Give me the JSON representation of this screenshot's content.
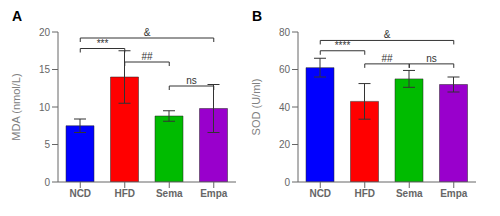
{
  "chart_data": [
    {
      "type": "bar",
      "title": "A",
      "categories": [
        "NCD",
        "HFD",
        "Sema",
        "Empa"
      ],
      "values": [
        7.5,
        14.0,
        8.8,
        9.8
      ],
      "errors": [
        0.9,
        3.5,
        0.7,
        3.2
      ],
      "colors": [
        "#0000FF",
        "#FF0000",
        "#00BB00",
        "#9900CC"
      ],
      "ylabel": "MDA (nmol/L)",
      "ylim": [
        0,
        20
      ],
      "yticks": [
        0,
        5,
        10,
        15,
        20
      ],
      "grid": false,
      "annotations": [
        {
          "text": "***",
          "x1": "NCD",
          "x2": "HFD",
          "y": 17.8
        },
        {
          "text": "##",
          "x1": "HFD",
          "x2": "Sema",
          "y": 16.0
        },
        {
          "text": "&",
          "x1": "NCD",
          "x2": "Empa",
          "y": 19.2
        },
        {
          "text": "ns",
          "x1": "Sema",
          "x2": "Empa",
          "y": 12.8
        }
      ]
    },
    {
      "type": "bar",
      "title": "B",
      "categories": [
        "NCD",
        "HFD",
        "Sema",
        "Empa"
      ],
      "values": [
        61.0,
        43.0,
        55.0,
        52.0
      ],
      "errors": [
        5.0,
        9.5,
        4.5,
        4.0
      ],
      "colors": [
        "#0000FF",
        "#FF0000",
        "#00BB00",
        "#9900CC"
      ],
      "ylabel": "SOD (U/ml)",
      "ylim": [
        0,
        80
      ],
      "yticks": [
        0,
        20,
        40,
        60,
        80
      ],
      "grid": false,
      "annotations": [
        {
          "text": "****",
          "x1": "NCD",
          "x2": "HFD",
          "y": 70.0
        },
        {
          "text": "##",
          "x1": "HFD",
          "x2": "Sema",
          "y": 63.0
        },
        {
          "text": "ns",
          "x1": "Sema",
          "x2": "Empa",
          "y": 63.0
        },
        {
          "text": "&",
          "x1": "NCD",
          "x2": "Empa",
          "y": 75.5
        }
      ]
    }
  ]
}
